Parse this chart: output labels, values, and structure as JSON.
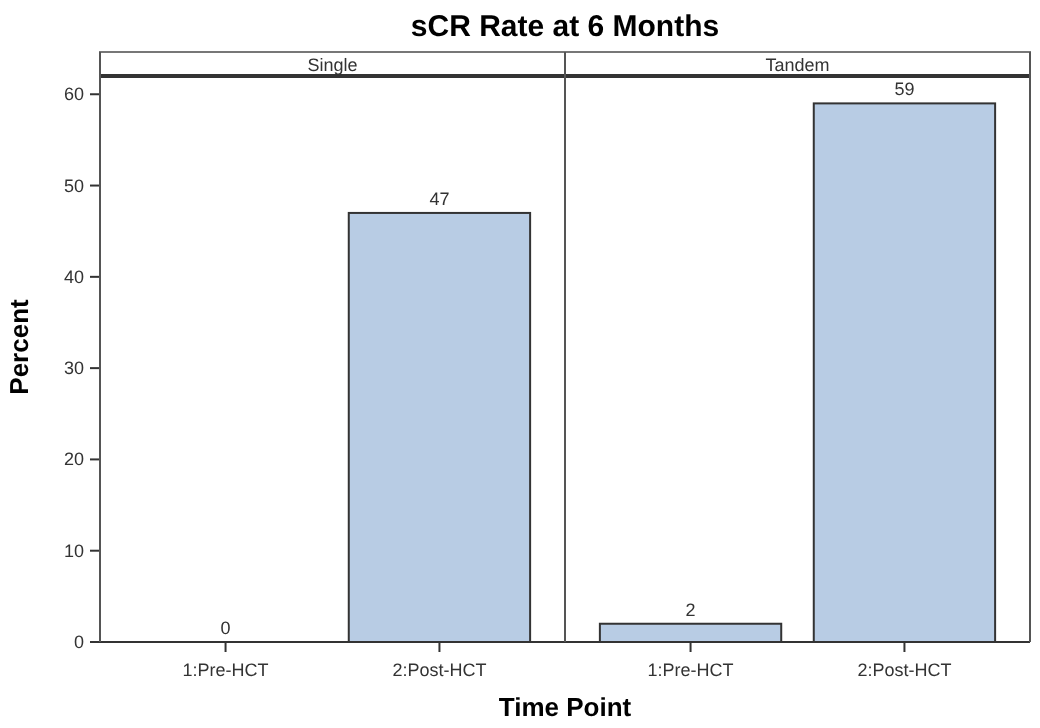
{
  "chart_data": [
    {
      "type": "bar",
      "title": "sCR Rate at 6 Months",
      "subtitle": "Single",
      "xlabel": "Time Point",
      "ylabel": "Percent",
      "categories": [
        "1:Pre-HCT",
        "2:Post-HCT"
      ],
      "values": [
        0,
        47
      ],
      "color": "#b8cce4",
      "ylim": [
        0,
        62
      ],
      "yticks": [
        0,
        10,
        20,
        30,
        40,
        50,
        60
      ],
      "data_labels": true,
      "grid": false
    },
    {
      "type": "bar",
      "subtitle": "Tandem",
      "categories": [
        "1:Pre-HCT",
        "2:Post-HCT"
      ],
      "values": [
        2,
        59
      ],
      "color": "#b8cce4",
      "ylim": [
        0,
        62
      ],
      "yticks": [
        0,
        10,
        20,
        30,
        40,
        50,
        60
      ],
      "data_labels": true,
      "grid": false,
      "tick_labels": "x"
    }
  ]
}
